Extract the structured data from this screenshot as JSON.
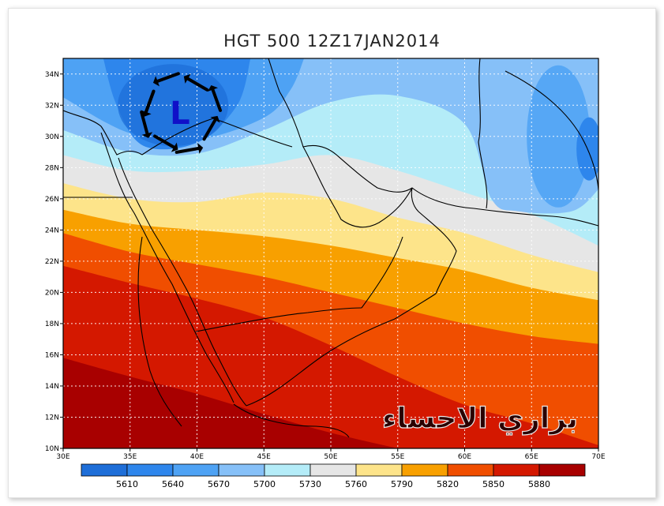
{
  "title": "HGT 500 12Z17JAN2014",
  "watermark": "براري الاحساء",
  "low_marker": "L",
  "map": {
    "lon_range": [
      30,
      70
    ],
    "lat_range": [
      10,
      35
    ],
    "x_ticks": [
      {
        "lon": 30,
        "label": "30E"
      },
      {
        "lon": 35,
        "label": "35E"
      },
      {
        "lon": 40,
        "label": "40E"
      },
      {
        "lon": 45,
        "label": "45E"
      },
      {
        "lon": 50,
        "label": "50E"
      },
      {
        "lon": 55,
        "label": "55E"
      },
      {
        "lon": 60,
        "label": "60E"
      },
      {
        "lon": 65,
        "label": "65E"
      },
      {
        "lon": 70,
        "label": "70E"
      }
    ],
    "y_ticks": [
      {
        "lat": 10,
        "label": "10N"
      },
      {
        "lat": 12,
        "label": "12N"
      },
      {
        "lat": 14,
        "label": "14N"
      },
      {
        "lat": 16,
        "label": "16N"
      },
      {
        "lat": 18,
        "label": "18N"
      },
      {
        "lat": 20,
        "label": "20N"
      },
      {
        "lat": 22,
        "label": "22N"
      },
      {
        "lat": 24,
        "label": "24N"
      },
      {
        "lat": 26,
        "label": "26N"
      },
      {
        "lat": 28,
        "label": "28N"
      },
      {
        "lat": 30,
        "label": "30N"
      },
      {
        "lat": 32,
        "label": "32N"
      },
      {
        "lat": 34,
        "label": "34N"
      }
    ],
    "grid": true,
    "low_center": {
      "lon": 38.8,
      "lat": 31.5
    }
  },
  "colorbar": {
    "colors": [
      "#1e6ed8",
      "#2e86ec",
      "#4ea2f4",
      "#86c0f8",
      "#b4ecf8",
      "#e6e6e6",
      "#fde48a",
      "#f8a000",
      "#f04e00",
      "#d41800",
      "#a80000"
    ],
    "labels": [
      "5610",
      "5640",
      "5670",
      "5700",
      "5730",
      "5760",
      "5790",
      "5820",
      "5850",
      "5880"
    ]
  },
  "chart_data": {
    "type": "heatmap",
    "title": "HGT 500 12Z17JAN2014",
    "xlabel": "",
    "ylabel": "",
    "xlim": [
      30,
      70
    ],
    "ylim": [
      10,
      35
    ],
    "levels": [
      5610,
      5640,
      5670,
      5700,
      5730,
      5760,
      5790,
      5820,
      5850,
      5880
    ],
    "band_colors": [
      "#1e6ed8",
      "#2e86ec",
      "#4ea2f4",
      "#86c0f8",
      "#b4ecf8",
      "#e6e6e6",
      "#fde48a",
      "#f8a000",
      "#f04e00",
      "#d41800",
      "#a80000"
    ],
    "contours": [
      {
        "level": 5880,
        "points": [
          [
            30,
            15.8
          ],
          [
            35,
            14.6
          ],
          [
            40,
            13.5
          ],
          [
            45,
            12.2
          ],
          [
            50,
            11.0
          ],
          [
            55,
            10.0
          ]
        ]
      },
      {
        "level": 5850,
        "points": [
          [
            30,
            21.7
          ],
          [
            35,
            20.6
          ],
          [
            40,
            19.6
          ],
          [
            45,
            18.4
          ],
          [
            50,
            16.6
          ],
          [
            55,
            14.6
          ],
          [
            60,
            12.8
          ],
          [
            65,
            11.6
          ],
          [
            70,
            10.2
          ]
        ]
      },
      {
        "level": 5820,
        "points": [
          [
            30,
            23.8
          ],
          [
            35,
            22.6
          ],
          [
            40,
            21.8
          ],
          [
            45,
            21.0
          ],
          [
            50,
            20.0
          ],
          [
            55,
            19.0
          ],
          [
            60,
            18.0
          ],
          [
            65,
            17.2
          ],
          [
            70,
            16.7
          ]
        ]
      },
      {
        "level": 5790,
        "points": [
          [
            30,
            25.3
          ],
          [
            35,
            24.4
          ],
          [
            40,
            24.0
          ],
          [
            45,
            23.6
          ],
          [
            50,
            23.0
          ],
          [
            55,
            22.2
          ],
          [
            60,
            21.4
          ],
          [
            65,
            20.3
          ],
          [
            70,
            19.5
          ]
        ]
      },
      {
        "level": 5760,
        "points": [
          [
            30,
            27.0
          ],
          [
            35,
            26.0
          ],
          [
            40,
            25.8
          ],
          [
            45,
            26.4
          ],
          [
            50,
            26.0
          ],
          [
            55,
            24.8
          ],
          [
            60,
            23.8
          ],
          [
            65,
            22.4
          ],
          [
            70,
            21.3
          ]
        ]
      },
      {
        "level": 5730,
        "points": [
          [
            30,
            28.8
          ],
          [
            35,
            27.8
          ],
          [
            40,
            27.8
          ],
          [
            45,
            28.2
          ],
          [
            50,
            28.8
          ],
          [
            55,
            27.8
          ],
          [
            60,
            26.4
          ],
          [
            65,
            25.0
          ],
          [
            70,
            23.0
          ]
        ]
      },
      {
        "level": 5700,
        "points": [
          [
            30,
            30.4
          ],
          [
            35,
            29.0
          ],
          [
            40,
            28.9
          ],
          [
            45,
            30.4
          ],
          [
            50,
            32.2
          ],
          [
            55,
            32.6
          ],
          [
            60,
            30.8
          ],
          [
            62,
            26.0
          ],
          [
            64,
            25.2
          ],
          [
            68,
            25.2
          ],
          [
            70,
            26.6
          ]
        ]
      },
      {
        "level": 5670,
        "points": [
          [
            30,
            32.5
          ],
          [
            35,
            30.2
          ],
          [
            40,
            29.8
          ],
          [
            45,
            31.2
          ],
          [
            47,
            33.0
          ],
          [
            48,
            35.0
          ]
        ]
      },
      {
        "level": 5640,
        "points": [
          [
            33,
            35.0
          ],
          [
            34,
            32.0
          ],
          [
            36,
            29.4
          ],
          [
            40,
            29.6
          ],
          [
            43,
            32.0
          ],
          [
            44,
            35.0
          ]
        ]
      }
    ]
  }
}
